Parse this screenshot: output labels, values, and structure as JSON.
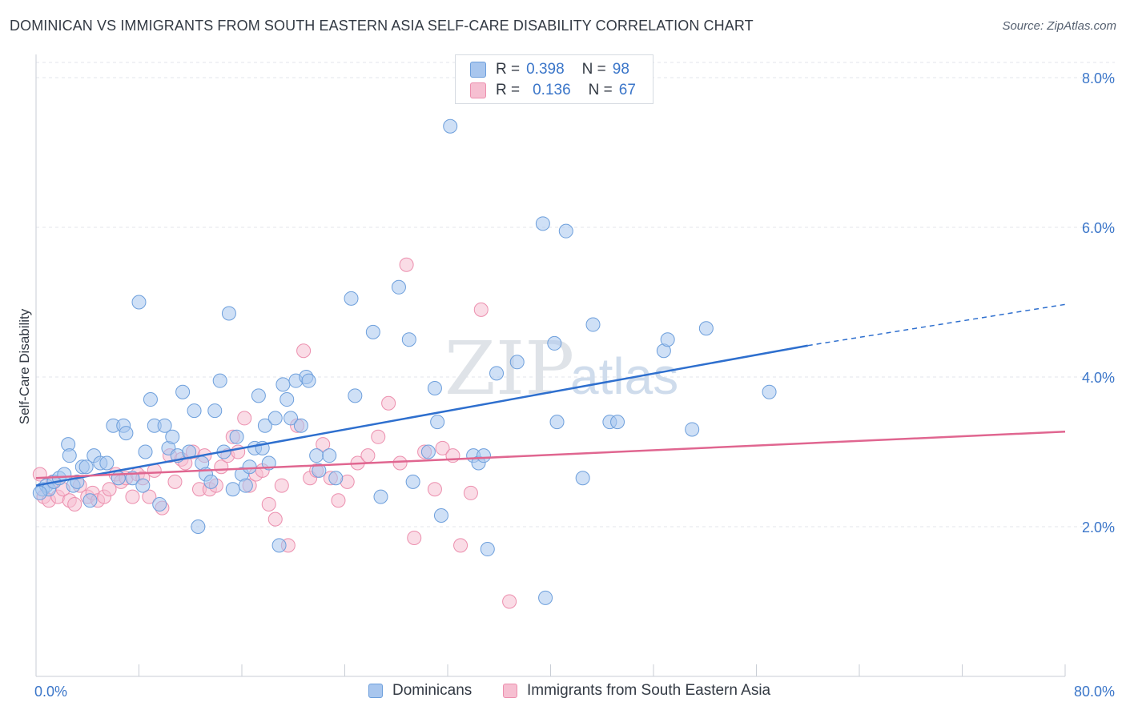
{
  "title": "DOMINICAN VS IMMIGRANTS FROM SOUTH EASTERN ASIA SELF-CARE DISABILITY CORRELATION CHART",
  "source": "Source: ZipAtlas.com",
  "watermark": {
    "part1": "ZIP",
    "part2": "atlas"
  },
  "colors": {
    "blue_fill": "#a8c6ee",
    "blue_stroke": "#6d9fdc",
    "blue_line": "#2e6fce",
    "pink_fill": "#f6bfd1",
    "pink_stroke": "#ec8fae",
    "pink_line": "#e06690",
    "axis_text": "#3b76c9",
    "grid": "#e3e6eb"
  },
  "legend_stats": {
    "rows": [
      {
        "r_label": "R =",
        "r_value": "0.398",
        "n_label": "N =",
        "n_value": "98"
      },
      {
        "r_label": "R =",
        "r_value": "0.136",
        "n_label": "N =",
        "n_value": "67"
      }
    ]
  },
  "legend_bottom": {
    "items": [
      "Dominicans",
      "Immigrants from South Eastern Asia"
    ]
  },
  "chart_data": {
    "type": "scatter",
    "ylabel": "Self-Care Disability",
    "xlabel": "",
    "xlim": [
      0,
      80
    ],
    "ylim": [
      0,
      8.0
    ],
    "x_tick_labels": [
      "0.0%",
      "80.0%"
    ],
    "y_ticks": [
      2.0,
      4.0,
      6.0,
      8.0
    ],
    "y_tick_labels": [
      "2.0%",
      "4.0%",
      "6.0%",
      "8.0%"
    ],
    "grid": "horizontal dashed",
    "legend_placement": "top-center",
    "series": [
      {
        "name": "Dominicans",
        "color": "blue",
        "trend": {
          "x_start": 0,
          "y_start": 2.55,
          "x_end": 60,
          "y_end": 4.42,
          "dashed_to_x": 80,
          "dashed_to_y": 4.97
        },
        "points": [
          [
            0.5,
            2.5
          ],
          [
            0.8,
            2.55
          ],
          [
            1.0,
            2.5
          ],
          [
            1.4,
            2.6
          ],
          [
            1.8,
            2.65
          ],
          [
            2.2,
            2.7
          ],
          [
            2.5,
            3.1
          ],
          [
            2.6,
            2.95
          ],
          [
            2.9,
            2.55
          ],
          [
            3.2,
            2.6
          ],
          [
            3.6,
            2.8
          ],
          [
            3.9,
            2.8
          ],
          [
            4.2,
            2.35
          ],
          [
            4.5,
            2.95
          ],
          [
            5.0,
            2.85
          ],
          [
            5.5,
            2.85
          ],
          [
            6.0,
            3.35
          ],
          [
            6.4,
            2.65
          ],
          [
            6.8,
            3.35
          ],
          [
            7.0,
            3.25
          ],
          [
            7.5,
            2.65
          ],
          [
            8.0,
            5.0
          ],
          [
            8.3,
            2.55
          ],
          [
            8.5,
            3.0
          ],
          [
            8.9,
            3.7
          ],
          [
            9.2,
            3.35
          ],
          [
            9.6,
            2.3
          ],
          [
            10.0,
            3.35
          ],
          [
            10.3,
            3.05
          ],
          [
            10.6,
            3.2
          ],
          [
            11.0,
            2.95
          ],
          [
            11.4,
            3.8
          ],
          [
            11.9,
            3.0
          ],
          [
            12.3,
            3.55
          ],
          [
            12.6,
            2.0
          ],
          [
            12.9,
            2.85
          ],
          [
            13.2,
            2.7
          ],
          [
            13.6,
            2.6
          ],
          [
            13.9,
            3.55
          ],
          [
            14.3,
            3.95
          ],
          [
            14.6,
            3.0
          ],
          [
            15.0,
            4.85
          ],
          [
            15.3,
            2.5
          ],
          [
            15.6,
            3.2
          ],
          [
            16.0,
            2.7
          ],
          [
            16.3,
            2.55
          ],
          [
            16.6,
            2.8
          ],
          [
            17.0,
            3.05
          ],
          [
            17.3,
            3.75
          ],
          [
            17.6,
            3.05
          ],
          [
            17.8,
            3.35
          ],
          [
            18.1,
            2.85
          ],
          [
            18.6,
            3.45
          ],
          [
            18.9,
            1.75
          ],
          [
            19.2,
            3.9
          ],
          [
            19.5,
            3.7
          ],
          [
            19.8,
            3.45
          ],
          [
            20.2,
            3.95
          ],
          [
            20.6,
            3.35
          ],
          [
            21.0,
            4.0
          ],
          [
            21.2,
            3.95
          ],
          [
            21.8,
            2.95
          ],
          [
            22.0,
            2.75
          ],
          [
            22.8,
            2.95
          ],
          [
            23.3,
            2.65
          ],
          [
            24.5,
            5.05
          ],
          [
            24.8,
            3.75
          ],
          [
            26.2,
            4.6
          ],
          [
            26.8,
            2.4
          ],
          [
            28.2,
            5.2
          ],
          [
            29.0,
            4.5
          ],
          [
            29.3,
            2.6
          ],
          [
            30.5,
            3.0
          ],
          [
            31.0,
            3.85
          ],
          [
            31.2,
            3.4
          ],
          [
            31.5,
            2.15
          ],
          [
            32.2,
            7.35
          ],
          [
            34.0,
            2.95
          ],
          [
            34.4,
            2.85
          ],
          [
            34.8,
            2.95
          ],
          [
            35.1,
            1.7
          ],
          [
            35.8,
            4.05
          ],
          [
            37.4,
            4.2
          ],
          [
            39.4,
            6.05
          ],
          [
            39.6,
            1.05
          ],
          [
            40.3,
            4.45
          ],
          [
            40.5,
            3.4
          ],
          [
            41.2,
            5.95
          ],
          [
            42.5,
            2.65
          ],
          [
            43.3,
            4.7
          ],
          [
            44.6,
            3.4
          ],
          [
            45.2,
            3.4
          ],
          [
            48.8,
            4.35
          ],
          [
            49.1,
            4.5
          ],
          [
            51.0,
            3.3
          ],
          [
            52.1,
            4.65
          ],
          [
            57.0,
            3.8
          ],
          [
            0.3,
            2.45
          ]
        ]
      },
      {
        "name": "Immigrants from South Eastern Asia",
        "color": "pink",
        "trend": {
          "x_start": 0,
          "y_start": 2.65,
          "x_end": 80,
          "y_end": 3.27
        },
        "points": [
          [
            0.3,
            2.7
          ],
          [
            0.6,
            2.4
          ],
          [
            1.0,
            2.35
          ],
          [
            1.3,
            2.6
          ],
          [
            1.7,
            2.4
          ],
          [
            2.1,
            2.5
          ],
          [
            2.6,
            2.35
          ],
          [
            3.0,
            2.3
          ],
          [
            3.4,
            2.55
          ],
          [
            4.0,
            2.4
          ],
          [
            4.4,
            2.45
          ],
          [
            4.8,
            2.35
          ],
          [
            5.3,
            2.4
          ],
          [
            5.7,
            2.5
          ],
          [
            6.2,
            2.7
          ],
          [
            6.6,
            2.6
          ],
          [
            7.0,
            2.65
          ],
          [
            7.5,
            2.4
          ],
          [
            7.9,
            2.7
          ],
          [
            8.3,
            2.65
          ],
          [
            8.8,
            2.4
          ],
          [
            9.2,
            2.75
          ],
          [
            9.8,
            2.25
          ],
          [
            10.4,
            2.95
          ],
          [
            10.8,
            2.6
          ],
          [
            11.3,
            2.9
          ],
          [
            11.6,
            2.85
          ],
          [
            12.2,
            3.0
          ],
          [
            12.7,
            2.5
          ],
          [
            13.1,
            2.95
          ],
          [
            13.5,
            2.5
          ],
          [
            14.0,
            2.55
          ],
          [
            14.4,
            2.8
          ],
          [
            14.9,
            2.95
          ],
          [
            15.3,
            3.2
          ],
          [
            15.7,
            3.0
          ],
          [
            16.2,
            3.45
          ],
          [
            16.6,
            2.55
          ],
          [
            17.1,
            2.7
          ],
          [
            17.6,
            2.75
          ],
          [
            18.1,
            2.3
          ],
          [
            18.6,
            2.1
          ],
          [
            19.1,
            2.55
          ],
          [
            19.6,
            1.75
          ],
          [
            20.3,
            3.35
          ],
          [
            20.8,
            4.35
          ],
          [
            21.3,
            2.65
          ],
          [
            21.8,
            2.75
          ],
          [
            22.3,
            3.1
          ],
          [
            22.9,
            2.65
          ],
          [
            23.5,
            2.35
          ],
          [
            24.2,
            2.6
          ],
          [
            25.0,
            2.85
          ],
          [
            25.8,
            2.95
          ],
          [
            26.6,
            3.2
          ],
          [
            27.4,
            3.65
          ],
          [
            28.3,
            2.85
          ],
          [
            28.8,
            5.5
          ],
          [
            29.4,
            1.85
          ],
          [
            30.2,
            3.0
          ],
          [
            31.0,
            2.5
          ],
          [
            31.6,
            3.05
          ],
          [
            32.4,
            2.95
          ],
          [
            33.0,
            1.75
          ],
          [
            33.8,
            2.45
          ],
          [
            34.6,
            4.9
          ],
          [
            36.8,
            1.0
          ]
        ]
      }
    ],
    "extra_points_note": ""
  }
}
